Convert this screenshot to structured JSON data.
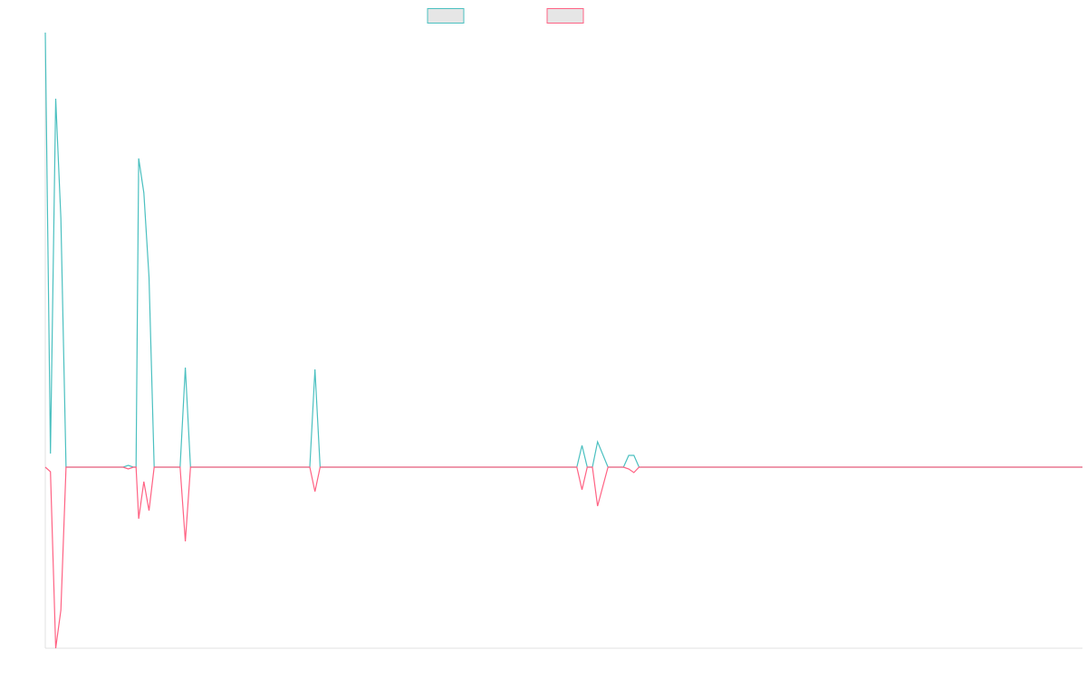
{
  "chart_data": {
    "type": "line",
    "title": "",
    "xlabel": "",
    "ylabel": "",
    "grid": false,
    "legend_position": "top-center",
    "xlim": [
      0,
      200
    ],
    "ylim": [
      -200,
      480
    ],
    "series": [
      {
        "color": "#4bc0c0",
        "legend_fill": "#e6e6e6",
        "points": [
          [
            0,
            480
          ],
          [
            1,
            15
          ],
          [
            2,
            407
          ],
          [
            3,
            275
          ],
          [
            4,
            0
          ],
          [
            5,
            0
          ],
          [
            15,
            0
          ],
          [
            16,
            2
          ],
          [
            17,
            0
          ],
          [
            17.5,
            0
          ],
          [
            18,
            341
          ],
          [
            19,
            303
          ],
          [
            20,
            210
          ],
          [
            21,
            0
          ],
          [
            26,
            0
          ],
          [
            27,
            110
          ],
          [
            28,
            0
          ],
          [
            51,
            0
          ],
          [
            52,
            108
          ],
          [
            53,
            0
          ],
          [
            102.5,
            0
          ],
          [
            103.5,
            24
          ],
          [
            104.5,
            0
          ],
          [
            105.5,
            0
          ],
          [
            106.5,
            28
          ],
          [
            108.5,
            0
          ],
          [
            111.5,
            0
          ],
          [
            112.5,
            13
          ],
          [
            113.5,
            13
          ],
          [
            114.5,
            0
          ],
          [
            200,
            0
          ]
        ]
      },
      {
        "color": "#ff6384",
        "legend_fill": "#e6e6e6",
        "points": [
          [
            0,
            0
          ],
          [
            1,
            -5
          ],
          [
            2,
            -200
          ],
          [
            3,
            -158
          ],
          [
            4,
            0
          ],
          [
            5,
            0
          ],
          [
            15,
            0
          ],
          [
            16,
            -2
          ],
          [
            17,
            0
          ],
          [
            17.5,
            0
          ],
          [
            18,
            -57
          ],
          [
            19,
            -16
          ],
          [
            20,
            -48
          ],
          [
            21,
            0
          ],
          [
            26,
            0
          ],
          [
            27,
            -82
          ],
          [
            28,
            0
          ],
          [
            51,
            0
          ],
          [
            52,
            -27
          ],
          [
            53,
            0
          ],
          [
            102.5,
            0
          ],
          [
            103.5,
            -25
          ],
          [
            104.5,
            0
          ],
          [
            105.5,
            0
          ],
          [
            106.5,
            -43
          ],
          [
            108.5,
            0
          ],
          [
            111.5,
            0
          ],
          [
            112.5,
            -2
          ],
          [
            113.5,
            -6
          ],
          [
            114.5,
            0
          ],
          [
            200,
            0
          ]
        ]
      }
    ]
  }
}
